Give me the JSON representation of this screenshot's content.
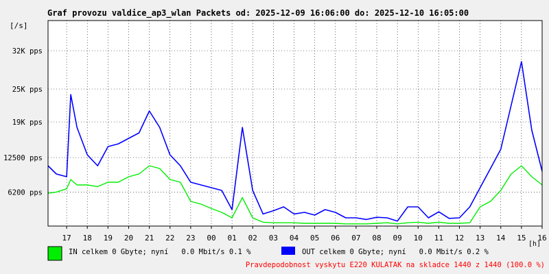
{
  "chart_data": {
    "type": "line",
    "title": "Graf provozu valdice_ap3_wlan Packets od: 2025-12-09 16:06:00 do: 2025-12-10 16:05:00",
    "ylabel": "[/s]",
    "xlabel": "[h]",
    "ylim": [
      0,
      37500
    ],
    "y_ticks": [
      {
        "label": "6200 pps",
        "value": 6200
      },
      {
        "label": "12500 pps",
        "value": 12500
      },
      {
        "label": "19K pps",
        "value": 19000
      },
      {
        "label": "25K pps",
        "value": 25000
      },
      {
        "label": "32K pps",
        "value": 32000
      }
    ],
    "x_ticks": [
      "17",
      "18",
      "19",
      "20",
      "21",
      "22",
      "23",
      "00",
      "01",
      "02",
      "03",
      "04",
      "05",
      "06",
      "07",
      "08",
      "09",
      "10",
      "11",
      "12",
      "13",
      "14",
      "15",
      "16"
    ],
    "x_hours": [
      16.1,
      16.5,
      17,
      17.2,
      17.5,
      18,
      18.5,
      19,
      19.5,
      20,
      20.5,
      21,
      21.5,
      22,
      22.5,
      23,
      23.5,
      24,
      24.5,
      25,
      25.5,
      26,
      26.5,
      27,
      27.5,
      28,
      28.5,
      29,
      29.5,
      30,
      30.5,
      31,
      31.5,
      32,
      32.5,
      33,
      33.5,
      34,
      34.5,
      35,
      35.5,
      36,
      36.5,
      37,
      37.5,
      38,
      38.5,
      39,
      39.5,
      40
    ],
    "series": [
      {
        "name": "IN",
        "color": "#00ee00",
        "values": [
          6000,
          6200,
          6800,
          8500,
          7500,
          7500,
          7200,
          8000,
          8000,
          9000,
          9500,
          11000,
          10500,
          8500,
          8000,
          4500,
          4000,
          3200,
          2500,
          1500,
          5200,
          1500,
          700,
          600,
          600,
          600,
          500,
          500,
          500,
          500,
          400,
          400,
          400,
          500,
          600,
          400,
          600,
          700,
          500,
          700,
          500,
          500,
          600,
          3500,
          4500,
          6500,
          9500,
          11000,
          9000,
          7500
        ]
      },
      {
        "name": "OUT",
        "color": "#0000ff",
        "values": [
          11000,
          9500,
          9000,
          24000,
          18000,
          13000,
          11000,
          14500,
          15000,
          16000,
          17000,
          21000,
          18000,
          13000,
          11000,
          8000,
          7500,
          7000,
          6500,
          3000,
          18000,
          6500,
          2200,
          2800,
          3500,
          2200,
          2500,
          2000,
          3000,
          2500,
          1500,
          1500,
          1200,
          1600,
          1500,
          900,
          3500,
          3500,
          1500,
          2600,
          1400,
          1500,
          3500,
          7000,
          10500,
          14000,
          22000,
          30000,
          17500,
          10000
        ]
      }
    ],
    "legend": [
      {
        "series": "IN",
        "text": "IN celkem 0 Gbyte; nyní   0.0 Mbit/s 0.1 %"
      },
      {
        "series": "OUT",
        "text": "OUT celkem 0 Gbyte; nyní   0.0 Mbit/s 0.2 %"
      }
    ],
    "footnote": "Pravdepodobnost vyskytu E220 KULATAK na skladce 1440 z 1440 (100.0 %)",
    "footnote_color": "#ff0000",
    "grid": true,
    "legend_placement": "bottom-left"
  }
}
